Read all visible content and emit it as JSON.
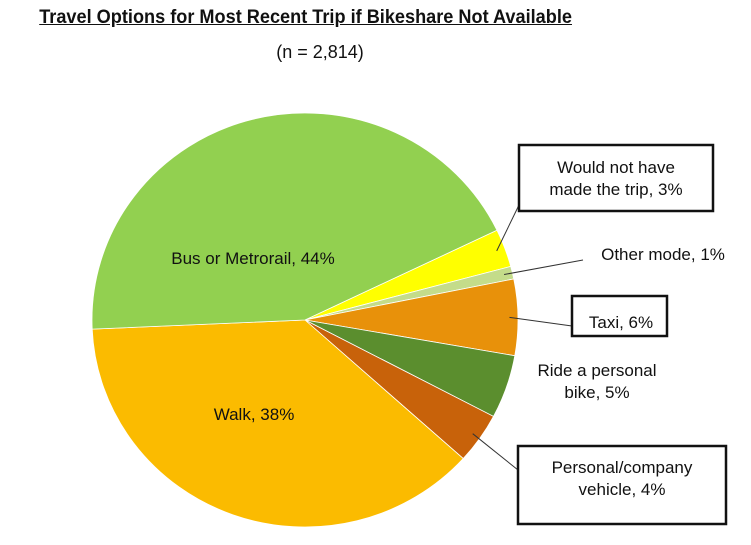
{
  "chart_data": {
    "type": "pie",
    "title": "Travel Options for Most Recent Trip if Bikeshare Not Available",
    "subtitle": "(n = 2,814)",
    "slices": [
      {
        "name": "Would not have made the trip",
        "value": 3,
        "color": "#ffff00",
        "label_lines": [
          "Would not have",
          "made the trip, 3%"
        ],
        "label_style": "boxed-callout"
      },
      {
        "name": "Other mode",
        "value": 1,
        "color": "#c4dc8a",
        "label_lines": [
          "Other mode, 1%"
        ],
        "label_style": "callout"
      },
      {
        "name": "Taxi",
        "value": 6,
        "color": "#e8910a",
        "label_lines": [
          "Taxi, 6%"
        ],
        "label_style": "boxed-callout"
      },
      {
        "name": "Ride a personal bike",
        "value": 5,
        "color": "#5b8e2e",
        "label_lines": [
          "Ride a personal",
          "bike, 5%"
        ],
        "label_style": "outside"
      },
      {
        "name": "Personal/company vehicle",
        "value": 4,
        "color": "#c8620a",
        "label_lines": [
          "Personal/company",
          "vehicle, 4%"
        ],
        "label_style": "boxed-callout"
      },
      {
        "name": "Walk",
        "value": 38,
        "color": "#fbbb00",
        "label_lines": [
          "Walk, 38%"
        ],
        "label_style": "inside"
      },
      {
        "name": "Bus or Metrorail",
        "value": 44,
        "color": "#92d050",
        "label_lines": [
          "Bus or Metrorail, 44%"
        ],
        "label_style": "inside"
      }
    ]
  }
}
